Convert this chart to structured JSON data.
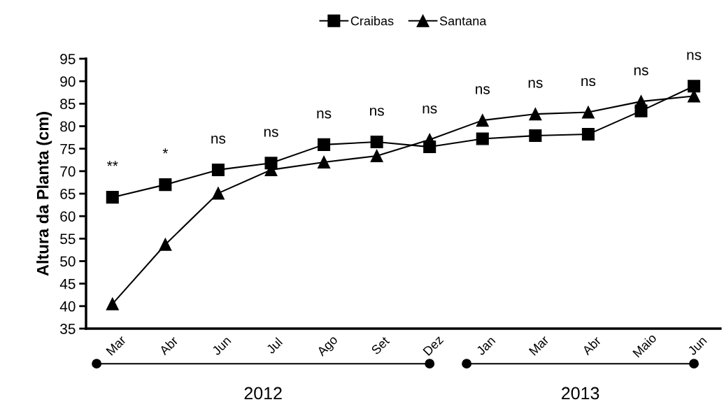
{
  "chart_data": {
    "type": "line",
    "ylabel": "Altura da Planta (cm)",
    "categories": [
      "Mar",
      "Abr",
      "Jun",
      "Jul",
      "Ago",
      "Set",
      "Dez",
      "Jan",
      "Mar",
      "Abr",
      "Maio",
      "Jun"
    ],
    "series": [
      {
        "name": "Craibas",
        "color": "#000000",
        "marker": "square",
        "values": [
          64.2,
          67.0,
          70.3,
          71.8,
          75.9,
          76.5,
          75.4,
          77.2,
          77.9,
          78.2,
          83.4,
          88.9
        ]
      },
      {
        "name": "Santana",
        "color": "#000000",
        "marker": "triangle",
        "values": [
          40.5,
          53.7,
          65.1,
          70.3,
          72.0,
          73.4,
          77.0,
          81.3,
          82.7,
          83.1,
          85.5,
          86.7
        ]
      }
    ],
    "ylim": [
      35,
      95
    ],
    "yticks": [
      35,
      40,
      45,
      50,
      55,
      60,
      65,
      70,
      75,
      80,
      85,
      90,
      95
    ],
    "grid": false,
    "legend": "top",
    "line_style": "solid",
    "annotations": [
      "**",
      "*",
      "ns",
      "ns",
      "ns",
      "ns",
      "ns",
      "ns",
      "ns",
      "ns",
      "ns",
      "ns",
      "2012",
      "2013"
    ]
  }
}
